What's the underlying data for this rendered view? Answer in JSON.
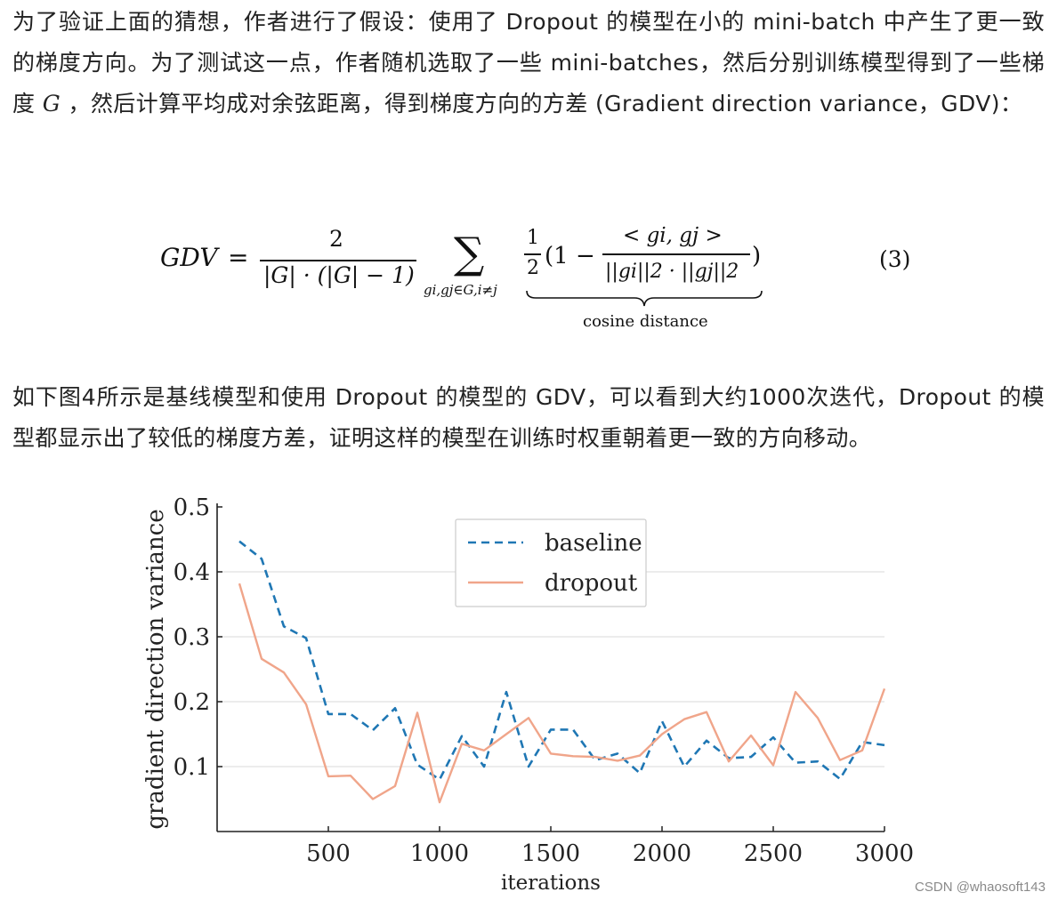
{
  "paragraph1": {
    "before": "为了验证上面的猜想，作者进行了假设：使用了 Dropout 的模型在小的 mini-batch 中产生了更一致的梯度方向。为了测试这一点，作者随机选取了一些 mini-batches，然后分别训练模型得到了一些梯度 ",
    "symbol": "G",
    "after": " ，然后计算平均成对余弦距离，得到梯度方向的方差 (Gradient direction variance，GDV)："
  },
  "equation": {
    "lhs": "GDV",
    "equals": "=",
    "frac_num": "2",
    "frac_den": "|G| · (|G| − 1)",
    "sum": "∑",
    "sum_sub": "gi,gj∈G,i≠j",
    "half_num": "1",
    "half_den": "2",
    "open": "(1 −",
    "inner_num": "< gi, gj >",
    "inner_den": "||gi||2 · ||gj||2",
    "close": ")",
    "underbrace_label": "cosine distance",
    "number": "(3)"
  },
  "paragraph2": "如下图4所示是基线模型和使用 Dropout 的模型的 GDV，可以看到大约1000次迭代，Dropout 的模型都显示出了较低的梯度方差，证明这样的模型在训练时权重朝着更一致的方向移动。",
  "chart_data": {
    "type": "line",
    "xlabel": "iterations",
    "ylabel": "gradient direction variance",
    "xlim": [
      0,
      3000
    ],
    "ylim": [
      0,
      0.5
    ],
    "xticks": [
      500,
      1000,
      1500,
      2000,
      2500,
      3000
    ],
    "yticks": [
      0.1,
      0.2,
      0.3,
      0.4,
      0.5
    ],
    "ytick_labels": [
      "0.1",
      "0.2",
      "0.3",
      "0.4",
      "0.5"
    ],
    "grid": "horizontal",
    "legend_position": "top-center",
    "x": [
      100,
      200,
      300,
      400,
      500,
      600,
      700,
      800,
      900,
      1000,
      1100,
      1200,
      1300,
      1400,
      1500,
      1600,
      1700,
      1800,
      1900,
      2000,
      2100,
      2200,
      2300,
      2400,
      2500,
      2600,
      2700,
      2800,
      2900,
      3000
    ],
    "series": [
      {
        "name": "baseline",
        "style": "dashed",
        "color": "#1f77b4",
        "values": [
          0.447,
          0.42,
          0.316,
          0.298,
          0.181,
          0.181,
          0.156,
          0.19,
          0.103,
          0.08,
          0.147,
          0.1,
          0.215,
          0.1,
          0.157,
          0.157,
          0.11,
          0.12,
          0.09,
          0.17,
          0.1,
          0.14,
          0.113,
          0.115,
          0.145,
          0.106,
          0.108,
          0.081,
          0.138,
          0.133
        ]
      },
      {
        "name": "dropout",
        "style": "solid",
        "color": "#f0a58a",
        "values": [
          0.382,
          0.266,
          0.245,
          0.196,
          0.085,
          0.086,
          0.05,
          0.07,
          0.183,
          0.045,
          0.135,
          0.125,
          0.15,
          0.175,
          0.12,
          0.116,
          0.115,
          0.109,
          0.117,
          0.15,
          0.173,
          0.184,
          0.108,
          0.148,
          0.102,
          0.215,
          0.175,
          0.11,
          0.125,
          0.22
        ]
      }
    ]
  },
  "watermark": "CSDN @whaosoft143"
}
